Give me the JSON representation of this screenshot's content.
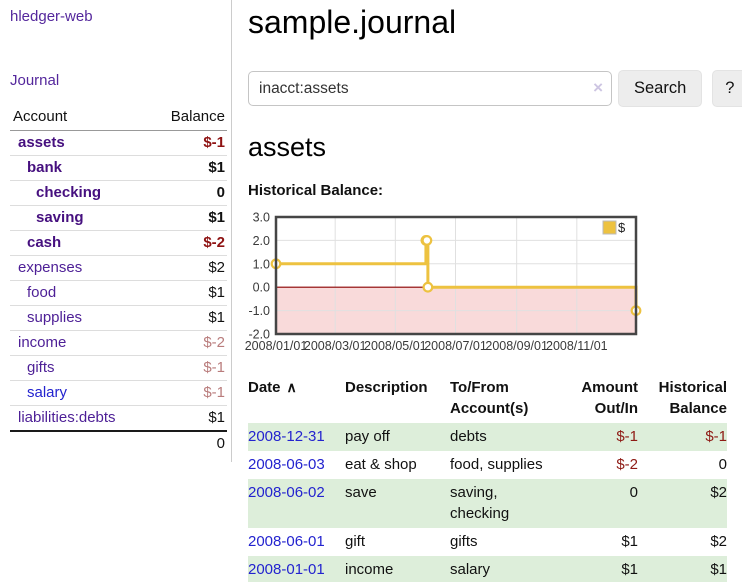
{
  "app": {
    "brand": "hledger-web",
    "nav_journal": "Journal"
  },
  "sidebar": {
    "table_headers": {
      "account": "Account",
      "balance": "Balance"
    },
    "accounts": [
      {
        "name": "assets",
        "depth": 1,
        "bold": true,
        "balance": "$-1",
        "balance_style": "neg-strong"
      },
      {
        "name": "bank",
        "depth": 2,
        "bold": true,
        "balance": "$1",
        "balance_style": "pos"
      },
      {
        "name": "checking",
        "depth": 3,
        "bold": true,
        "balance": "0",
        "balance_style": "pos"
      },
      {
        "name": "saving",
        "depth": 3,
        "bold": true,
        "balance": "$1",
        "balance_style": "pos"
      },
      {
        "name": "cash",
        "depth": 2,
        "bold": true,
        "balance": "$-2",
        "balance_style": "neg-strong"
      },
      {
        "name": "expenses",
        "depth": 1,
        "bold": false,
        "balance": "$2",
        "balance_style": "pos"
      },
      {
        "name": "food",
        "depth": 2,
        "bold": false,
        "balance": "$1",
        "balance_style": "pos"
      },
      {
        "name": "supplies",
        "depth": 2,
        "bold": false,
        "balance": "$1",
        "balance_style": "pos"
      },
      {
        "name": "income",
        "depth": 1,
        "bold": false,
        "balance": "$-2",
        "balance_style": "neg-soft"
      },
      {
        "name": "gifts",
        "depth": 2,
        "bold": false,
        "balance": "$-1",
        "balance_style": "neg-soft"
      },
      {
        "name": "salary",
        "depth": 2,
        "bold": false,
        "balance": "$-1",
        "balance_style": "neg-soft",
        "link_style": "blue"
      },
      {
        "name": "liabilities:debts",
        "depth": 1,
        "bold": false,
        "balance": "$1",
        "balance_style": "pos"
      }
    ],
    "total": "0"
  },
  "header": {
    "title": "sample.journal"
  },
  "search": {
    "value": "inacct:assets",
    "clear_icon": "×",
    "button": "Search",
    "help_button": "?"
  },
  "account_page": {
    "title": "assets",
    "chart_label": "Historical Balance:"
  },
  "chart_data": {
    "type": "line",
    "line_style": "step-after",
    "title": "Historical Balance of assets",
    "x_range": [
      "2008-01-01",
      "2008-12-31"
    ],
    "x_ticks": [
      "2008/01/01",
      "2008/03/01",
      "2008/05/01",
      "2008/07/01",
      "2008/09/01",
      "2008/11/01"
    ],
    "y_ticks": [
      "3.0",
      "2.0",
      "1.0",
      "0.0",
      "-1.0",
      "-2.0"
    ],
    "ylim": [
      -2,
      3
    ],
    "grid": true,
    "legend": {
      "label": "$",
      "position": "top-right"
    },
    "series": [
      {
        "name": "$",
        "color": "#edc240",
        "points": [
          [
            "2008-01-01",
            1
          ],
          [
            "2008-06-01",
            2
          ],
          [
            "2008-06-02",
            2
          ],
          [
            "2008-06-03",
            0
          ],
          [
            "2008-12-31",
            -1
          ]
        ]
      }
    ],
    "colors": {
      "series": "#edc240",
      "zero_line": "#8b0000",
      "negative_region": "#f9dada",
      "grid": "#e0e0e0",
      "plot_border": "#454545",
      "tick_text": "#3a3a3a"
    }
  },
  "register": {
    "headers": {
      "date": "Date",
      "sort_indicator": "∧",
      "description": "Description",
      "accounts": "To/From Account(s)",
      "amount": "Amount Out/In",
      "balance": "Historical Balance"
    },
    "rows": [
      {
        "date": "2008-12-31",
        "description": "pay off",
        "accounts": "debts",
        "amount": "$-1",
        "amount_neg": true,
        "balance": "$-1",
        "balance_neg": true
      },
      {
        "date": "2008-06-03",
        "description": "eat & shop",
        "accounts": "food, supplies",
        "amount": "$-2",
        "amount_neg": true,
        "balance": "0",
        "balance_neg": false
      },
      {
        "date": "2008-06-02",
        "description": "save",
        "accounts": "saving, checking",
        "amount": "0",
        "amount_neg": false,
        "balance": "$2",
        "balance_neg": false
      },
      {
        "date": "2008-06-01",
        "description": "gift",
        "accounts": "gifts",
        "amount": "$1",
        "amount_neg": false,
        "balance": "$2",
        "balance_neg": false
      },
      {
        "date": "2008-01-01",
        "description": "income",
        "accounts": "salary",
        "amount": "$1",
        "amount_neg": false,
        "balance": "$1",
        "balance_neg": false
      }
    ]
  },
  "colors": {
    "link_purple": "#54279c",
    "account_purple": "#4d1f96",
    "account_bold_purple": "#46107f",
    "link_blue": "#2323cf",
    "negative_strong": "#8e1212",
    "negative_soft": "#b97c7c",
    "row_stripe_green": "#ddeeda",
    "button_bg": "#ededed"
  }
}
